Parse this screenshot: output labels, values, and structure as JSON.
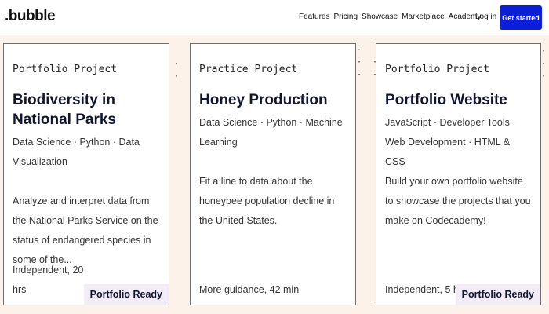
{
  "header": {
    "logo": ".bubble",
    "nav": [
      "Features",
      "Pricing",
      "Showcase",
      "Marketplace",
      "Academy"
    ],
    "login": "Log in",
    "cta": "Get started"
  },
  "cards": [
    {
      "type": "Portfolio Project",
      "title": "Biodiversity in National Parks",
      "tags": "Data Science · Python · Data Visualization",
      "description": "Analyze and interpret data from the National Parks Service on the status of endangered species in some of the...",
      "footer": "Independent, 20 hrs",
      "badge": "Portfolio Ready"
    },
    {
      "type": "Practice Project",
      "title": "Honey Production",
      "tags": "Data Science · Python · Machine Learning",
      "description": "Fit a line to data about the honeybee population decline in the United States.",
      "footer": "More guidance, 42 min",
      "badge": ""
    },
    {
      "type": "Portfolio Project",
      "title": "Portfolio Website",
      "tags": "JavaScript · Developer Tools · Web Development · HTML & CSS",
      "description": "Build your own portfolio website to showcase the projects that you make on Codecademy!",
      "footer": "Independent, 5 hrs",
      "badge": "Portfolio Ready"
    }
  ]
}
